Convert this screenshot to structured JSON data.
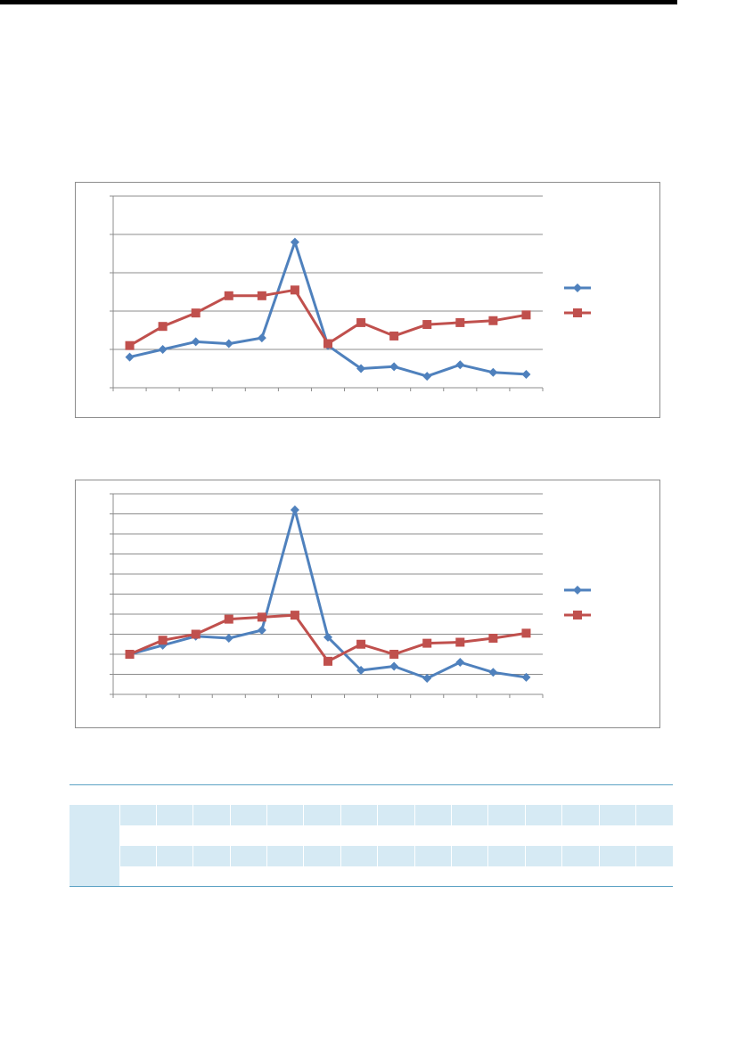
{
  "page": {
    "rule_color": "#000000"
  },
  "colors": {
    "series_blue": "#4f81bd",
    "series_red": "#c0504d",
    "gridline": "#8c8c8c",
    "table_shade": "#d6eaf4",
    "table_rule": "#5da3c5"
  },
  "chart_data": [
    {
      "type": "line",
      "title": "",
      "xlabel": "",
      "ylabel": "",
      "grid": true,
      "legend": "right",
      "x": [
        1,
        2,
        3,
        4,
        5,
        6,
        7,
        8,
        9,
        10,
        11,
        12,
        13
      ],
      "ylim": [
        0,
        5
      ],
      "series": [
        {
          "color": "#4f81bd",
          "marker": "diamond",
          "values": [
            0.8,
            1.0,
            1.2,
            1.15,
            1.3,
            3.8,
            1.1,
            0.5,
            0.55,
            0.3,
            0.6,
            0.4,
            0.35
          ]
        },
        {
          "color": "#c0504d",
          "marker": "square",
          "values": [
            1.1,
            1.6,
            1.95,
            2.4,
            2.4,
            2.55,
            1.15,
            1.7,
            1.35,
            1.65,
            1.7,
            1.75,
            1.9
          ]
        }
      ]
    },
    {
      "type": "line",
      "title": "",
      "xlabel": "",
      "ylabel": "",
      "grid": true,
      "legend": "right",
      "x": [
        1,
        2,
        3,
        4,
        5,
        6,
        7,
        8,
        9,
        10,
        11,
        12,
        13
      ],
      "ylim": [
        0,
        10
      ],
      "series": [
        {
          "color": "#4f81bd",
          "marker": "diamond",
          "values": [
            2.0,
            2.45,
            2.9,
            2.8,
            3.2,
            9.2,
            2.85,
            1.2,
            1.4,
            0.8,
            1.6,
            1.1,
            0.85
          ]
        },
        {
          "color": "#c0504d",
          "marker": "square",
          "values": [
            2.0,
            2.7,
            3.0,
            3.75,
            3.85,
            3.95,
            1.65,
            2.5,
            2.0,
            2.55,
            2.6,
            2.8,
            3.05
          ]
        }
      ]
    }
  ]
}
